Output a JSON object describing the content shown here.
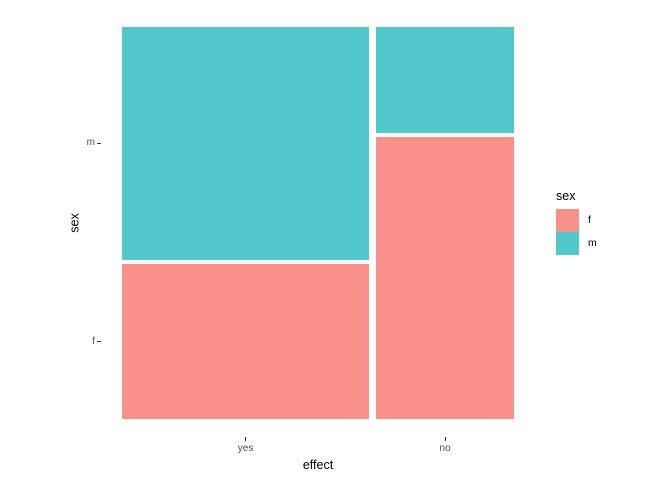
{
  "chart_data": {
    "type": "mosaic",
    "title": "",
    "xlabel": "effect",
    "ylabel": "sex",
    "x_categories": [
      "yes",
      "no"
    ],
    "fill_categories_top_to_bottom": [
      "m",
      "f"
    ],
    "colors": {
      "f": "#F8918A",
      "m": "#52C8CD"
    },
    "columns": [
      {
        "category": "yes",
        "width_fraction": 0.642,
        "segments": [
          {
            "fill": "m",
            "fraction": 0.6
          },
          {
            "fill": "f",
            "fraction": 0.4
          }
        ]
      },
      {
        "category": "no",
        "width_fraction": 0.358,
        "segments": [
          {
            "fill": "m",
            "fraction": 0.273
          },
          {
            "fill": "f",
            "fraction": 0.727
          }
        ]
      }
    ],
    "axes": {
      "x_tick_labels": [
        "yes",
        "no"
      ],
      "y_tick_labels_top_to_bottom": [
        "m",
        "f"
      ],
      "grid": false,
      "background": "#ffffff"
    },
    "legend": {
      "title": "sex",
      "position": "right",
      "entries": [
        {
          "label": "f",
          "color": "#F8918A"
        },
        {
          "label": "m",
          "color": "#52C8CD"
        }
      ]
    }
  }
}
